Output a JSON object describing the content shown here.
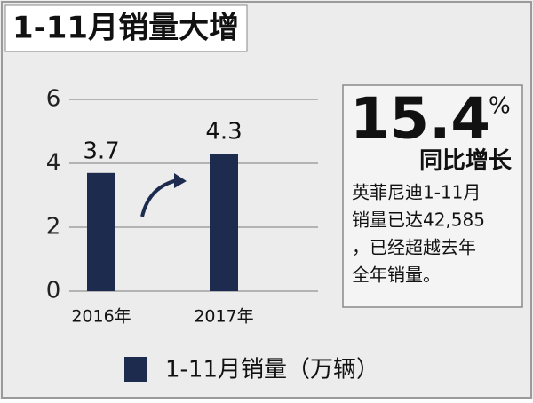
{
  "chart_data": {
    "type": "bar",
    "title": "1-11月销量大增",
    "categories": [
      "2016年",
      "2017年"
    ],
    "series": [
      {
        "name": "1-11月销量（万辆）",
        "color": "#1d2b4e",
        "values": [
          3.7,
          4.3
        ]
      }
    ],
    "ylim": [
      0,
      6
    ],
    "yticks": [
      0,
      2,
      4,
      6
    ],
    "grid": true
  },
  "callout": {
    "figure": "15.4",
    "unit": "%",
    "caption": "同比增长",
    "lines": [
      "英菲尼迪1-11月",
      "销量已达42,585",
      "，已经超越去年",
      "全年销量。"
    ]
  }
}
